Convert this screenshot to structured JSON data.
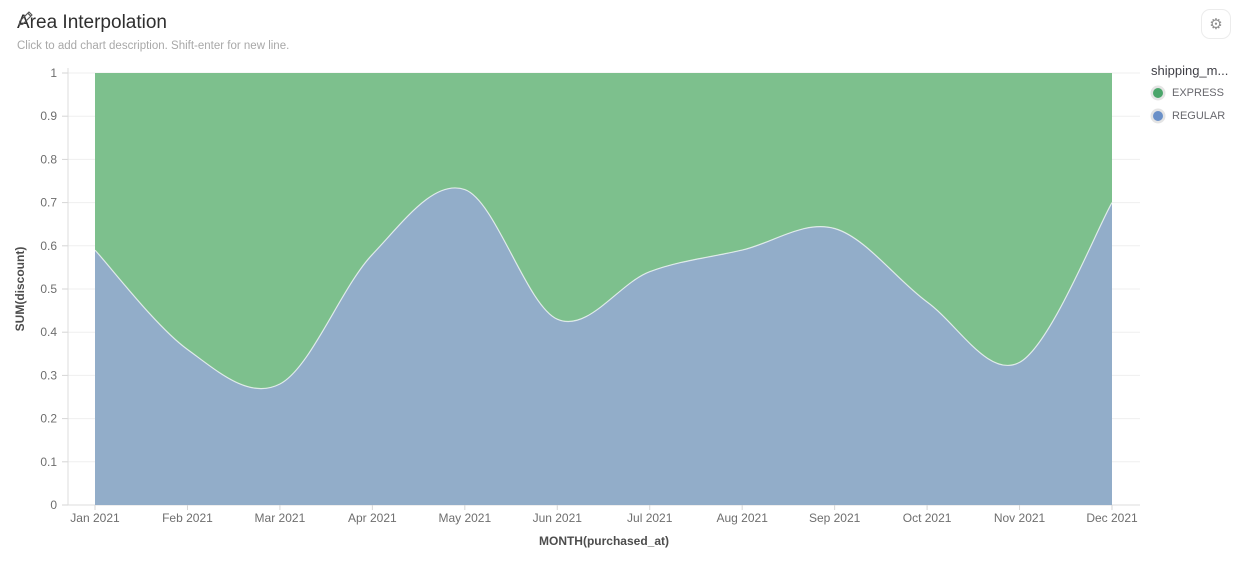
{
  "header": {
    "title": "Area Interpolation",
    "subtitle": "Click to add chart description. Shift-enter for new line."
  },
  "legend": {
    "title": "shipping_m...",
    "items": [
      {
        "label": "EXPRESS",
        "color": "#4aa56a"
      },
      {
        "label": "REGULAR",
        "color": "#6a90c8"
      }
    ]
  },
  "chart_data": {
    "type": "area",
    "stacked": true,
    "stack_total": 1,
    "smooth": true,
    "grid": "horizontal",
    "x": [
      "Jan 2021",
      "Feb 2021",
      "Mar 2021",
      "Apr 2021",
      "May 2021",
      "Jun 2021",
      "Jul 2021",
      "Aug 2021",
      "Sep 2021",
      "Oct 2021",
      "Nov 2021",
      "Dec 2021"
    ],
    "xlabel": "MONTH(purchased_at)",
    "ylabel": "SUM(discount)",
    "ylim": [
      0,
      1
    ],
    "y_tick_labels": [
      "0",
      "0.1",
      "0.2",
      "0.3",
      "0.4",
      "0.5",
      "0.6",
      "0.7",
      "0.8",
      "0.9",
      "1"
    ],
    "series": [
      {
        "name": "REGULAR",
        "fill": "#92adc9",
        "values": [
          0.59,
          0.36,
          0.28,
          0.58,
          0.73,
          0.43,
          0.54,
          0.59,
          0.64,
          0.47,
          0.33,
          0.7
        ]
      },
      {
        "name": "EXPRESS",
        "fill": "#7dc08d",
        "values": [
          0.41,
          0.64,
          0.72,
          0.42,
          0.27,
          0.57,
          0.46,
          0.41,
          0.36,
          0.53,
          0.67,
          0.3
        ]
      }
    ]
  }
}
